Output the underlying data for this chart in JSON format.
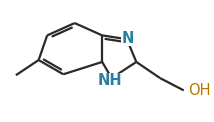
{
  "background": "#ffffff",
  "bond_color": "#2a2a2a",
  "bond_lw": 1.6,
  "atom_N_color": "#2a7fa0",
  "atom_OH_color": "#b87800",
  "label_N": "N",
  "label_NH": "NH",
  "label_OH": "OH",
  "label_fontsize": 10.5
}
